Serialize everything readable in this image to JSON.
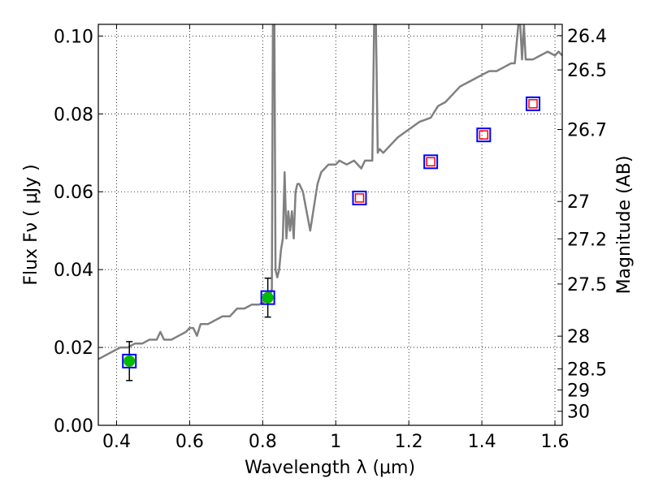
{
  "chart_data": {
    "type": "scatter",
    "xlabel": "Wavelength  λ (μm)",
    "ylabel": "Flux  Fν  ( μJy )",
    "ylabel_right": "Magnitude (AB)",
    "xlim": [
      0.35,
      1.62
    ],
    "ylim": [
      0.0,
      0.103
    ],
    "grid": true,
    "x_ticks": [
      {
        "v": 0.4,
        "label": "0.4"
      },
      {
        "v": 0.6,
        "label": "0.6"
      },
      {
        "v": 0.8,
        "label": "0.8"
      },
      {
        "v": 1.0,
        "label": "1"
      },
      {
        "v": 1.2,
        "label": "1.2"
      },
      {
        "v": 1.4,
        "label": "1.4"
      },
      {
        "v": 1.6,
        "label": "1.6"
      }
    ],
    "y_ticks": [
      {
        "v": 0.0,
        "label": "0.00"
      },
      {
        "v": 0.02,
        "label": "0.02"
      },
      {
        "v": 0.04,
        "label": "0.04"
      },
      {
        "v": 0.06,
        "label": "0.06"
      },
      {
        "v": 0.08,
        "label": "0.08"
      },
      {
        "v": 0.1,
        "label": "0.10"
      }
    ],
    "right_ticks": [
      {
        "flux": 0.1001,
        "label": "26.4"
      },
      {
        "flux": 0.0913,
        "label": "26.5"
      },
      {
        "flux": 0.076,
        "label": "26.7"
      },
      {
        "flux": 0.0575,
        "label": "27"
      },
      {
        "flux": 0.0479,
        "label": "27.2"
      },
      {
        "flux": 0.0363,
        "label": "27.5"
      },
      {
        "flux": 0.0229,
        "label": "28"
      },
      {
        "flux": 0.0145,
        "label": "28.5"
      },
      {
        "flux": 0.0091,
        "label": "29"
      },
      {
        "flux": 0.0036,
        "label": "30"
      }
    ],
    "colors": {
      "model": "#808080",
      "detection": "#00bb00",
      "box": "#0000ff",
      "upper_limit": "#ff0000",
      "errorbar": "#000000"
    },
    "model_sed": {
      "x": [
        0.35,
        0.37,
        0.39,
        0.41,
        0.43,
        0.45,
        0.47,
        0.49,
        0.51,
        0.52,
        0.53,
        0.55,
        0.57,
        0.59,
        0.6,
        0.61,
        0.62,
        0.63,
        0.65,
        0.67,
        0.69,
        0.71,
        0.73,
        0.75,
        0.77,
        0.79,
        0.81,
        0.815,
        0.82,
        0.825,
        0.828,
        0.832,
        0.835,
        0.84,
        0.845,
        0.85,
        0.855,
        0.86,
        0.865,
        0.87,
        0.875,
        0.88,
        0.885,
        0.89,
        0.895,
        0.9,
        0.91,
        0.93,
        0.95,
        0.96,
        0.97,
        0.98,
        0.99,
        1.0,
        1.01,
        1.03,
        1.05,
        1.07,
        1.08,
        1.09,
        1.1,
        1.105,
        1.11,
        1.115,
        1.12,
        1.13,
        1.15,
        1.17,
        1.2,
        1.23,
        1.26,
        1.28,
        1.3,
        1.32,
        1.34,
        1.36,
        1.38,
        1.4,
        1.42,
        1.44,
        1.46,
        1.48,
        1.49,
        1.5,
        1.505,
        1.51,
        1.515,
        1.52,
        1.53,
        1.54,
        1.56,
        1.58,
        1.6,
        1.61,
        1.62
      ],
      "y": [
        0.017,
        0.018,
        0.019,
        0.02,
        0.02,
        0.021,
        0.021,
        0.022,
        0.022,
        0.024,
        0.022,
        0.022,
        0.023,
        0.024,
        0.025,
        0.025,
        0.023,
        0.026,
        0.026,
        0.027,
        0.028,
        0.028,
        0.03,
        0.03,
        0.031,
        0.031,
        0.032,
        0.033,
        0.033,
        0.035,
        0.103,
        0.103,
        0.04,
        0.038,
        0.04,
        0.045,
        0.048,
        0.065,
        0.048,
        0.055,
        0.05,
        0.055,
        0.048,
        0.06,
        0.062,
        0.062,
        0.06,
        0.05,
        0.062,
        0.065,
        0.066,
        0.067,
        0.067,
        0.067,
        0.068,
        0.067,
        0.068,
        0.066,
        0.068,
        0.068,
        0.068,
        0.103,
        0.103,
        0.07,
        0.071,
        0.07,
        0.072,
        0.074,
        0.076,
        0.078,
        0.079,
        0.082,
        0.083,
        0.085,
        0.087,
        0.088,
        0.089,
        0.09,
        0.091,
        0.091,
        0.092,
        0.093,
        0.093,
        0.103,
        0.103,
        0.094,
        0.103,
        0.094,
        0.094,
        0.094,
        0.095,
        0.096,
        0.095,
        0.096,
        0.095
      ]
    },
    "photometry": [
      {
        "x": 0.435,
        "y": 0.0165,
        "yerr": 0.005,
        "kind": "detection"
      },
      {
        "x": 0.814,
        "y": 0.0328,
        "yerr": 0.005,
        "kind": "detection"
      },
      {
        "x": 1.065,
        "y": 0.0584,
        "kind": "upper_limit"
      },
      {
        "x": 1.26,
        "y": 0.0677,
        "kind": "upper_limit"
      },
      {
        "x": 1.405,
        "y": 0.0746,
        "kind": "upper_limit"
      },
      {
        "x": 1.54,
        "y": 0.0826,
        "kind": "upper_limit"
      }
    ]
  }
}
